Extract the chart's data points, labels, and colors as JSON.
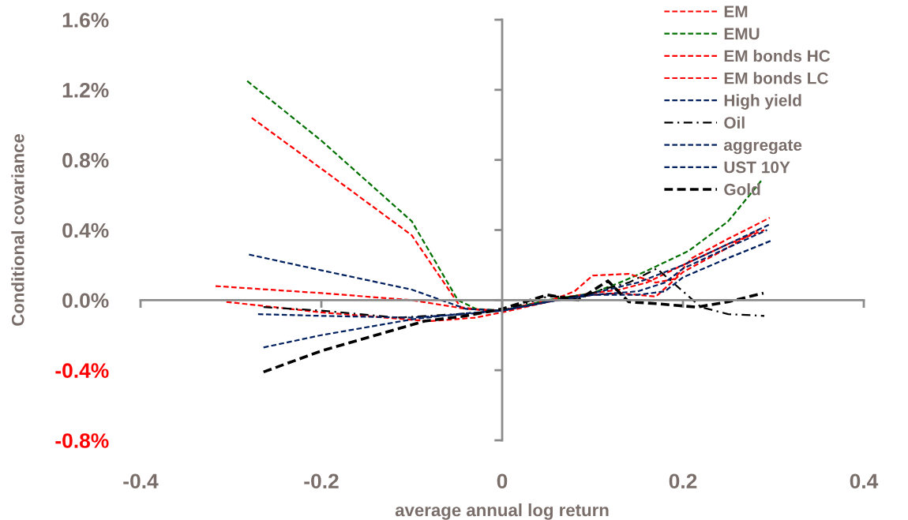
{
  "chart_data": {
    "type": "line",
    "xlabel": "average annual log return",
    "ylabel": "Conditional covariance",
    "xlim": [
      -0.4,
      0.4
    ],
    "xticks": [
      -0.4,
      -0.2,
      0,
      0.2,
      0.4
    ],
    "ylim": [
      -0.8,
      1.6
    ],
    "yticks": [
      {
        "value": -0.8,
        "label": "-0.8%"
      },
      {
        "value": -0.4,
        "label": "-0.4%"
      },
      {
        "value": 0,
        "label": "0.0%"
      },
      {
        "value": 0.4,
        "label": "0.4%"
      },
      {
        "value": 0.8,
        "label": "0.8%"
      },
      {
        "value": 1.2,
        "label": "1.2%"
      },
      {
        "value": 1.6,
        "label": "1.6%"
      }
    ],
    "legend": "top right",
    "marker": "none",
    "series": [
      {
        "name": "EM",
        "color": "#ff0000",
        "line_style": "dashed",
        "x": [
          -0.277,
          -0.2,
          -0.1,
          -0.046,
          -0.02,
          0,
          0.05,
          0.1,
          0.13,
          0.16,
          0.2,
          0.25,
          0.29
        ],
        "values": [
          1.04,
          0.75,
          0.37,
          -0.04,
          -0.06,
          -0.06,
          0.0,
          0.04,
          0.06,
          0.1,
          0.2,
          0.32,
          0.4
        ]
      },
      {
        "name": "EMU",
        "color": "#007000",
        "line_style": "dashed",
        "x": [
          -0.282,
          -0.2,
          -0.1,
          -0.049,
          -0.029,
          0,
          0.05,
          0.1,
          0.13,
          0.157,
          0.206,
          0.25,
          0.288
        ],
        "values": [
          1.25,
          0.91,
          0.45,
          0.0,
          -0.05,
          -0.06,
          0.0,
          0.04,
          0.1,
          0.16,
          0.28,
          0.45,
          0.69
        ]
      },
      {
        "name": "EM bonds HC",
        "color": "#ff0000",
        "line_style": "dashed",
        "x": [
          -0.317,
          -0.2,
          -0.1,
          -0.04,
          0,
          0.05,
          0.08,
          0.1,
          0.14,
          0.17,
          0.19,
          0.21,
          0.25,
          0.296
        ],
        "values": [
          0.08,
          0.04,
          0.0,
          -0.05,
          -0.06,
          -0.01,
          0.05,
          0.14,
          0.15,
          0.1,
          0.12,
          0.24,
          0.35,
          0.47
        ]
      },
      {
        "name": "EM bonds LC",
        "color": "#ff0000",
        "line_style": "dashed",
        "x": [
          -0.305,
          -0.2,
          -0.081,
          -0.03,
          0,
          0.05,
          0.1,
          0.13,
          0.17,
          0.2,
          0.25,
          0.283
        ],
        "values": [
          -0.01,
          -0.07,
          -0.12,
          -0.1,
          -0.07,
          -0.01,
          0.03,
          0.04,
          0.02,
          0.16,
          0.3,
          0.4
        ]
      },
      {
        "name": "High yield",
        "color": "#002060",
        "line_style": "dashed",
        "x": [
          -0.28,
          -0.2,
          -0.1,
          -0.04,
          0,
          0.05,
          0.1,
          0.15,
          0.2,
          0.25,
          0.295
        ],
        "values": [
          0.26,
          0.17,
          0.06,
          -0.05,
          -0.06,
          -0.01,
          0.04,
          0.1,
          0.2,
          0.32,
          0.43
        ]
      },
      {
        "name": "Oil",
        "color": "#000000",
        "line_style": "dashdot",
        "x": [
          -0.264,
          -0.2,
          -0.116,
          -0.05,
          0,
          0.05,
          0.09,
          0.11,
          0.14,
          0.171,
          0.2,
          0.22,
          0.25,
          0.29
        ],
        "values": [
          -0.04,
          -0.06,
          -0.1,
          -0.08,
          -0.06,
          0.02,
          0.02,
          0.06,
          0.1,
          0.18,
          0.05,
          -0.04,
          -0.08,
          -0.09
        ]
      },
      {
        "name": "aggregate",
        "color": "#002060",
        "line_style": "dashed",
        "x": [
          -0.27,
          -0.2,
          -0.1,
          -0.04,
          0,
          0.05,
          0.1,
          0.15,
          0.18,
          0.2,
          0.25,
          0.298
        ],
        "values": [
          -0.08,
          -0.09,
          -0.1,
          -0.08,
          -0.06,
          -0.01,
          0.03,
          0.03,
          0.05,
          0.13,
          0.24,
          0.34
        ]
      },
      {
        "name": "UST 10Y",
        "color": "#002060",
        "line_style": "dashed",
        "x": [
          -0.264,
          -0.2,
          -0.1,
          -0.05,
          0,
          0.05,
          0.1,
          0.15,
          0.18,
          0.2,
          0.25,
          0.293
        ],
        "values": [
          -0.27,
          -0.2,
          -0.11,
          -0.08,
          -0.06,
          -0.01,
          0.03,
          0.05,
          0.1,
          0.18,
          0.3,
          0.4
        ]
      },
      {
        "name": "Gold",
        "color": "#000000",
        "line_style": "dashed",
        "x": [
          -0.264,
          -0.2,
          -0.086,
          -0.04,
          0,
          0.05,
          0.084,
          0.117,
          0.14,
          0.17,
          0.215,
          0.25,
          0.289
        ],
        "values": [
          -0.41,
          -0.29,
          -0.12,
          -0.09,
          -0.05,
          0.03,
          0.0,
          0.11,
          -0.01,
          -0.02,
          -0.04,
          -0.01,
          0.04
        ]
      }
    ]
  }
}
